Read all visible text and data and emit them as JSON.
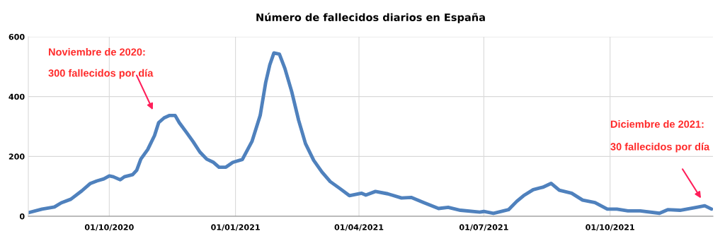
{
  "chart_data": {
    "type": "line",
    "title": "Número de fallecidos diarios en España",
    "x": [
      "2020-08-03",
      "2020-08-13",
      "2020-08-22",
      "2020-08-27",
      "2020-09-03",
      "2020-09-11",
      "2020-09-17",
      "2020-09-22",
      "2020-09-27",
      "2020-10-01",
      "2020-10-04",
      "2020-10-09",
      "2020-10-12",
      "2020-10-18",
      "2020-10-21",
      "2020-10-24",
      "2020-10-29",
      "2020-11-03",
      "2020-11-06",
      "2020-11-10",
      "2020-11-14",
      "2020-11-18",
      "2020-11-21",
      "2020-11-26",
      "2020-12-01",
      "2020-12-06",
      "2020-12-11",
      "2020-12-16",
      "2020-12-20",
      "2020-12-25",
      "2020-12-30",
      "2021-01-06",
      "2021-01-13",
      "2021-01-19",
      "2021-01-23",
      "2021-01-26",
      "2021-01-29",
      "2021-02-02",
      "2021-02-06",
      "2021-02-11",
      "2021-02-16",
      "2021-02-21",
      "2021-02-27",
      "2021-03-05",
      "2021-03-11",
      "2021-03-18",
      "2021-03-25",
      "2021-04-03",
      "2021-04-06",
      "2021-04-13",
      "2021-04-22",
      "2021-05-02",
      "2021-05-09",
      "2021-05-18",
      "2021-05-29",
      "2021-06-05",
      "2021-06-14",
      "2021-06-28",
      "2021-07-01",
      "2021-07-08",
      "2021-07-19",
      "2021-07-25",
      "2021-07-30",
      "2021-08-06",
      "2021-08-13",
      "2021-08-19",
      "2021-08-25",
      "2021-09-03",
      "2021-09-11",
      "2021-09-20",
      "2021-09-29",
      "2021-10-06",
      "2021-10-14",
      "2021-10-23",
      "2021-11-06",
      "2021-11-12",
      "2021-11-21",
      "2021-12-03",
      "2021-12-09",
      "2021-12-14"
    ],
    "series": [
      {
        "color": "#4f81bd",
        "values": [
          12,
          24,
          31,
          45,
          57,
          85,
          109,
          118,
          125,
          135,
          132,
          122,
          132,
          139,
          154,
          191,
          223,
          270,
          313,
          329,
          337,
          337,
          313,
          282,
          250,
          215,
          191,
          180,
          164,
          164,
          180,
          190,
          250,
          337,
          447,
          506,
          546,
          542,
          494,
          416,
          321,
          243,
          187,
          148,
          116,
          93,
          69,
          77,
          71,
          83,
          75,
          61,
          63,
          46,
          26,
          30,
          20,
          14,
          16,
          10,
          22,
          50,
          69,
          89,
          97,
          110,
          87,
          77,
          54,
          46,
          24,
          24,
          18,
          18,
          10,
          22,
          20,
          30,
          35,
          24
        ]
      }
    ],
    "xlim": [
      "2020-08-03",
      "2021-12-15"
    ],
    "xticks": [
      {
        "value": "2020-10-01",
        "label": "01/10/2020"
      },
      {
        "value": "2021-01-01",
        "label": "01/01/2021"
      },
      {
        "value": "2021-04-01",
        "label": "01/04/2021"
      },
      {
        "value": "2021-07-01",
        "label": "01/07/2021"
      },
      {
        "value": "2021-10-01",
        "label": "01/10/2021"
      }
    ],
    "ylim": [
      0,
      600
    ],
    "yticks": [
      0,
      200,
      400,
      600
    ],
    "grid": true,
    "annotations": [
      "Noviembre de 2020:",
      "300 fallecidos por día",
      "Diciembre de 2021:",
      "30 fallecidos por día"
    ]
  }
}
